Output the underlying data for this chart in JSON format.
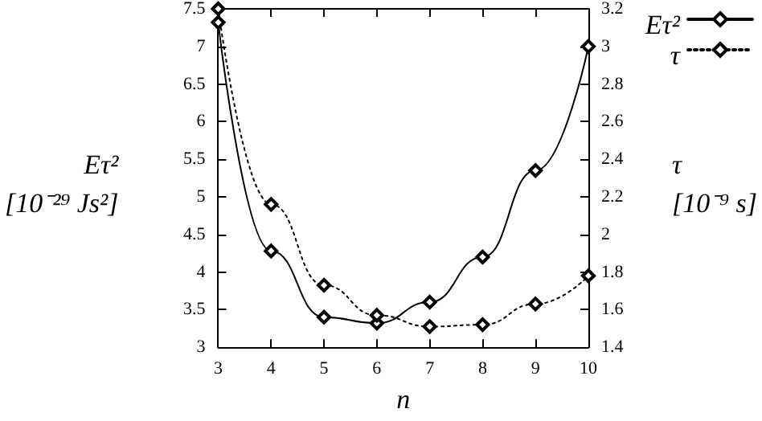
{
  "chart_data": {
    "type": "line",
    "xlabel": "n",
    "ylabel": "Eτ²\n[10⁻²⁹ Js²]",
    "y2label": "τ\n[10⁻⁹ s]",
    "x": [
      3,
      4,
      5,
      6,
      7,
      8,
      9,
      10
    ],
    "series": [
      {
        "name": "Eτ²",
        "color": "#000000",
        "line_style": "solid",
        "values": [
          7.32,
          4.28,
          3.4,
          3.32,
          3.6,
          4.2,
          5.35,
          7.0
        ]
      },
      {
        "name": "τ",
        "color": "#000000",
        "line_style": "dotted",
        "axis": "y2",
        "values": [
          3.2,
          2.16,
          1.73,
          1.57,
          1.51,
          1.52,
          1.63,
          1.78
        ]
      }
    ],
    "xlim": [
      3,
      10
    ],
    "xticks": [
      3,
      4,
      5,
      6,
      7,
      8,
      9,
      10
    ],
    "ylim": [
      3,
      7.5
    ],
    "yticks": [
      3,
      3.5,
      4,
      4.5,
      5,
      5.5,
      6,
      6.5,
      7,
      7.5
    ],
    "y2lim": [
      1.4,
      3.2
    ],
    "y2ticks": [
      1.4,
      1.6,
      1.8,
      2,
      2.2,
      2.4,
      2.6,
      2.8,
      3,
      3.2
    ],
    "marker": "diamond",
    "grid": false,
    "legend": "top right"
  }
}
